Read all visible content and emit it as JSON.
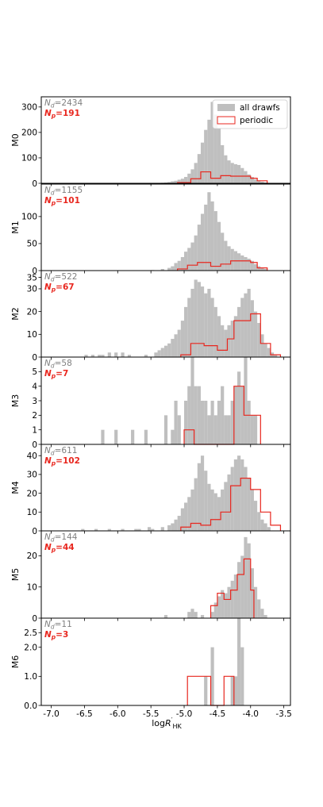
{
  "chart_data": {
    "type": "histogram-stack",
    "xlabel": "logR'_HK",
    "xlim": [
      -7.15,
      -3.4
    ],
    "xticks": [
      "-7.0",
      "-6.5",
      "-6.0",
      "-5.5",
      "-5.0",
      "-4.5",
      "-4.0",
      "-3.5"
    ],
    "bin_width": 0.05,
    "colors": {
      "all": "#bfbfbf",
      "periodic": "#e8271f",
      "nd_text": "#7f7f7f"
    },
    "legend": {
      "position": "top-right",
      "all_label": "all drawfs",
      "periodic_label": "periodic"
    },
    "panels": [
      {
        "name": "M0",
        "nd": "N_d=2434",
        "np": "N_p=191",
        "ylim": [
          0,
          340
        ],
        "yticks": [
          0,
          100,
          200,
          300
        ],
        "all_bins": [
          [
            -5.35,
            2
          ],
          [
            -5.3,
            3
          ],
          [
            -5.25,
            5
          ],
          [
            -5.2,
            8
          ],
          [
            -5.15,
            10
          ],
          [
            -5.1,
            14
          ],
          [
            -5.05,
            18
          ],
          [
            -5.0,
            25
          ],
          [
            -4.95,
            38
          ],
          [
            -4.9,
            55
          ],
          [
            -4.85,
            80
          ],
          [
            -4.8,
            115
          ],
          [
            -4.75,
            160
          ],
          [
            -4.7,
            210
          ],
          [
            -4.65,
            250
          ],
          [
            -4.6,
            320
          ],
          [
            -4.55,
            270
          ],
          [
            -4.5,
            215
          ],
          [
            -4.45,
            150
          ],
          [
            -4.4,
            110
          ],
          [
            -4.35,
            90
          ],
          [
            -4.3,
            80
          ],
          [
            -4.25,
            75
          ],
          [
            -4.2,
            72
          ],
          [
            -4.15,
            60
          ],
          [
            -4.1,
            48
          ],
          [
            -4.05,
            35
          ],
          [
            -4.0,
            25
          ],
          [
            -3.95,
            15
          ],
          [
            -3.9,
            10
          ],
          [
            -3.85,
            6
          ],
          [
            -3.8,
            3
          ]
        ],
        "periodic_edges": [
          -5.1,
          -4.9,
          -4.75,
          -4.6,
          -4.45,
          -4.3,
          -4.0,
          -3.9,
          -3.75
        ],
        "periodic_values": [
          3,
          18,
          45,
          20,
          30,
          28,
          20,
          10
        ]
      },
      {
        "name": "M1",
        "nd": "N_d=1155",
        "np": "N_p=101",
        "ylim": [
          0,
          160
        ],
        "yticks": [
          0,
          50,
          100
        ],
        "all_bins": [
          [
            -5.5,
            1
          ],
          [
            -5.35,
            3
          ],
          [
            -5.25,
            5
          ],
          [
            -5.2,
            8
          ],
          [
            -5.15,
            14
          ],
          [
            -5.1,
            18
          ],
          [
            -5.05,
            25
          ],
          [
            -5.0,
            35
          ],
          [
            -4.95,
            42
          ],
          [
            -4.9,
            52
          ],
          [
            -4.85,
            65
          ],
          [
            -4.8,
            85
          ],
          [
            -4.75,
            105
          ],
          [
            -4.7,
            122
          ],
          [
            -4.65,
            145
          ],
          [
            -4.6,
            128
          ],
          [
            -4.55,
            110
          ],
          [
            -4.5,
            90
          ],
          [
            -4.45,
            70
          ],
          [
            -4.4,
            55
          ],
          [
            -4.35,
            45
          ],
          [
            -4.3,
            40
          ],
          [
            -4.25,
            36
          ],
          [
            -4.2,
            32
          ],
          [
            -4.15,
            28
          ],
          [
            -4.1,
            25
          ],
          [
            -4.05,
            22
          ],
          [
            -4.0,
            18
          ],
          [
            -3.95,
            12
          ],
          [
            -3.9,
            8
          ],
          [
            -3.85,
            5
          ],
          [
            -3.8,
            3
          ]
        ],
        "periodic_edges": [
          -5.1,
          -4.95,
          -4.8,
          -4.6,
          -4.45,
          -4.3,
          -4.0,
          -3.9,
          -3.75
        ],
        "periodic_values": [
          3,
          10,
          15,
          8,
          12,
          18,
          15,
          5
        ]
      },
      {
        "name": "M2",
        "nd": "N_d=522",
        "np": "N_p=67",
        "ylim": [
          0,
          38
        ],
        "yticks": [
          0,
          10,
          20,
          30,
          35
        ],
        "all_bins": [
          [
            -6.5,
            1
          ],
          [
            -6.4,
            1
          ],
          [
            -6.3,
            1
          ],
          [
            -6.25,
            1
          ],
          [
            -6.15,
            2
          ],
          [
            -6.05,
            2
          ],
          [
            -5.95,
            2
          ],
          [
            -5.85,
            1
          ],
          [
            -5.6,
            1
          ],
          [
            -5.45,
            2
          ],
          [
            -5.4,
            3
          ],
          [
            -5.35,
            4
          ],
          [
            -5.3,
            5
          ],
          [
            -5.25,
            6
          ],
          [
            -5.2,
            8
          ],
          [
            -5.15,
            10
          ],
          [
            -5.1,
            12
          ],
          [
            -5.05,
            16
          ],
          [
            -5.0,
            22
          ],
          [
            -4.95,
            26
          ],
          [
            -4.9,
            30
          ],
          [
            -4.85,
            34
          ],
          [
            -4.8,
            33
          ],
          [
            -4.75,
            31
          ],
          [
            -4.7,
            28
          ],
          [
            -4.65,
            30
          ],
          [
            -4.6,
            26
          ],
          [
            -4.55,
            22
          ],
          [
            -4.5,
            18
          ],
          [
            -4.45,
            14
          ],
          [
            -4.4,
            12
          ],
          [
            -4.35,
            14
          ],
          [
            -4.3,
            16
          ],
          [
            -4.25,
            18
          ],
          [
            -4.2,
            22
          ],
          [
            -4.15,
            26
          ],
          [
            -4.1,
            28
          ],
          [
            -4.05,
            30
          ],
          [
            -4.0,
            25
          ],
          [
            -3.95,
            20
          ],
          [
            -3.9,
            15
          ],
          [
            -3.85,
            10
          ],
          [
            -3.8,
            6
          ],
          [
            -3.75,
            4
          ],
          [
            -3.7,
            2
          ],
          [
            -3.65,
            1
          ]
        ],
        "periodic_edges": [
          -5.05,
          -4.9,
          -4.7,
          -4.5,
          -4.35,
          -4.25,
          -4.0,
          -3.85,
          -3.7,
          -3.55
        ],
        "periodic_values": [
          1,
          6,
          5,
          3,
          8,
          16,
          19,
          6,
          1
        ]
      },
      {
        "name": "M3",
        "nd": "N_d=58",
        "np": "N_p=7",
        "ylim": [
          0,
          6
        ],
        "yticks": [
          0,
          1,
          2,
          3,
          4,
          5
        ],
        "all_bins": [
          [
            -6.25,
            1
          ],
          [
            -6.05,
            1
          ],
          [
            -5.8,
            1
          ],
          [
            -5.6,
            1
          ],
          [
            -5.3,
            2
          ],
          [
            -5.2,
            1
          ],
          [
            -5.15,
            3
          ],
          [
            -5.1,
            2
          ],
          [
            -5.0,
            3
          ],
          [
            -4.95,
            4
          ],
          [
            -4.9,
            6
          ],
          [
            -4.85,
            4
          ],
          [
            -4.8,
            4
          ],
          [
            -4.75,
            3
          ],
          [
            -4.7,
            3
          ],
          [
            -4.65,
            2
          ],
          [
            -4.6,
            3
          ],
          [
            -4.55,
            2
          ],
          [
            -4.5,
            3
          ],
          [
            -4.45,
            4
          ],
          [
            -4.4,
            2
          ],
          [
            -4.35,
            2
          ],
          [
            -4.3,
            3
          ],
          [
            -4.25,
            4
          ],
          [
            -4.2,
            5
          ],
          [
            -4.15,
            4
          ],
          [
            -4.1,
            6
          ],
          [
            -4.05,
            3
          ],
          [
            -4.0,
            2
          ],
          [
            -3.95,
            2
          ]
        ],
        "periodic_edges": [
          -5.0,
          -4.85,
          -4.55,
          -4.25,
          -4.1,
          -3.95,
          -3.85
        ],
        "periodic_values": [
          1,
          0,
          0,
          4,
          2,
          2
        ]
      },
      {
        "name": "M4",
        "nd": "N_d=611",
        "np": "N_p=102",
        "ylim": [
          0,
          46
        ],
        "yticks": [
          0,
          10,
          20,
          30,
          40
        ],
        "all_bins": [
          [
            -6.55,
            1
          ],
          [
            -6.35,
            1
          ],
          [
            -6.15,
            1
          ],
          [
            -5.95,
            1
          ],
          [
            -5.75,
            1
          ],
          [
            -5.7,
            1
          ],
          [
            -5.55,
            2
          ],
          [
            -5.5,
            1
          ],
          [
            -5.35,
            2
          ],
          [
            -5.25,
            3
          ],
          [
            -5.2,
            4
          ],
          [
            -5.15,
            6
          ],
          [
            -5.1,
            8
          ],
          [
            -5.05,
            12
          ],
          [
            -5.0,
            15
          ],
          [
            -4.95,
            18
          ],
          [
            -4.9,
            22
          ],
          [
            -4.85,
            28
          ],
          [
            -4.8,
            36
          ],
          [
            -4.75,
            40
          ],
          [
            -4.7,
            32
          ],
          [
            -4.65,
            25
          ],
          [
            -4.6,
            22
          ],
          [
            -4.55,
            20
          ],
          [
            -4.5,
            18
          ],
          [
            -4.45,
            22
          ],
          [
            -4.4,
            26
          ],
          [
            -4.35,
            30
          ],
          [
            -4.3,
            34
          ],
          [
            -4.25,
            38
          ],
          [
            -4.2,
            40
          ],
          [
            -4.15,
            38
          ],
          [
            -4.1,
            34
          ],
          [
            -4.05,
            28
          ],
          [
            -4.0,
            22
          ],
          [
            -3.95,
            16
          ],
          [
            -3.9,
            10
          ],
          [
            -3.85,
            6
          ],
          [
            -3.8,
            4
          ],
          [
            -3.75,
            2
          ]
        ],
        "periodic_edges": [
          -5.05,
          -4.9,
          -4.75,
          -4.6,
          -4.45,
          -4.3,
          -4.15,
          -4.0,
          -3.85,
          -3.7,
          -3.55
        ],
        "periodic_values": [
          2,
          4,
          3,
          6,
          10,
          24,
          28,
          22,
          10,
          3
        ]
      },
      {
        "name": "M5",
        "nd": "N_d=144",
        "np": "N_p=44",
        "ylim": [
          0,
          28
        ],
        "yticks": [
          0,
          10,
          20
        ],
        "all_bins": [
          [
            -5.3,
            1
          ],
          [
            -4.95,
            2
          ],
          [
            -4.9,
            3
          ],
          [
            -4.85,
            2
          ],
          [
            -4.75,
            1
          ],
          [
            -4.6,
            2
          ],
          [
            -4.55,
            5
          ],
          [
            -4.5,
            7
          ],
          [
            -4.45,
            9
          ],
          [
            -4.4,
            8
          ],
          [
            -4.35,
            10
          ],
          [
            -4.3,
            12
          ],
          [
            -4.25,
            14
          ],
          [
            -4.2,
            18
          ],
          [
            -4.15,
            20
          ],
          [
            -4.1,
            26
          ],
          [
            -4.05,
            24
          ],
          [
            -4.0,
            16
          ],
          [
            -3.95,
            10
          ],
          [
            -3.9,
            6
          ],
          [
            -3.85,
            3
          ],
          [
            -3.8,
            1
          ]
        ],
        "periodic_edges": [
          -4.6,
          -4.5,
          -4.4,
          -4.3,
          -4.2,
          -4.1,
          -4.0,
          -3.95
        ],
        "periodic_values": [
          4,
          8,
          6,
          9,
          14,
          19,
          9
        ]
      },
      {
        "name": "M6",
        "nd": "N_d=11",
        "np": "N_p=3",
        "ylim": [
          0,
          3.0
        ],
        "yticks": [
          0.0,
          1.0,
          2.0,
          2.5
        ],
        "all_bins": [
          [
            -4.7,
            1
          ],
          [
            -4.6,
            2
          ],
          [
            -4.3,
            1
          ],
          [
            -4.25,
            1
          ],
          [
            -4.2,
            3
          ],
          [
            -4.15,
            2
          ]
        ],
        "periodic_edges": [
          -4.95,
          -4.6,
          -4.4,
          -4.25
        ],
        "periodic_values": [
          1,
          0,
          1
        ]
      }
    ]
  }
}
